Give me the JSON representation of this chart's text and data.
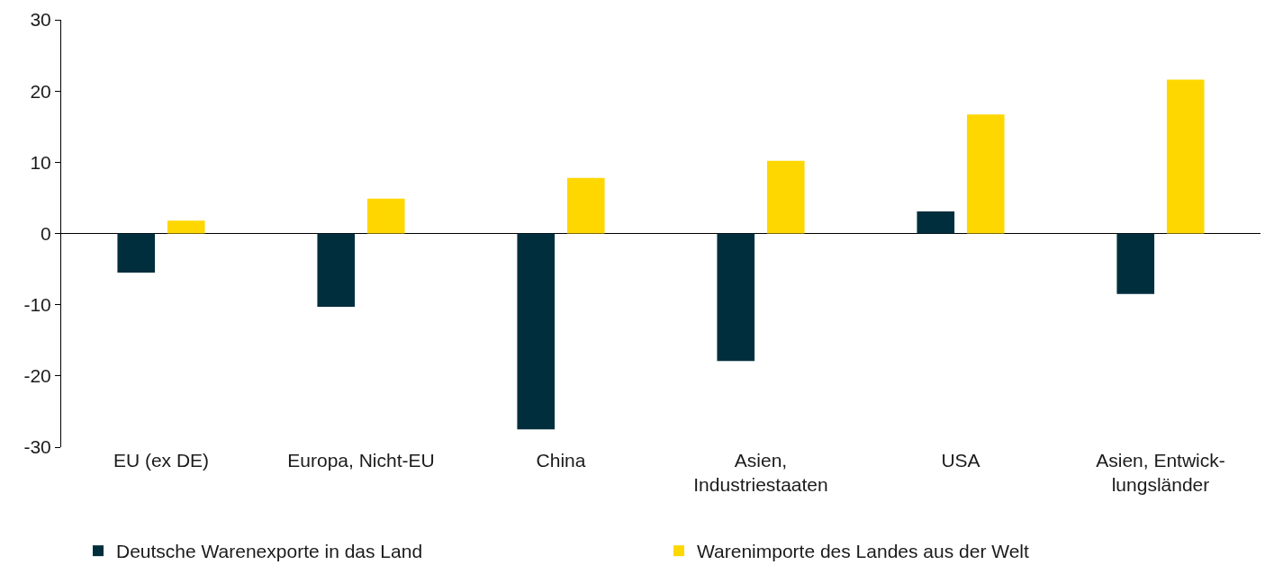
{
  "chart_data": {
    "type": "bar",
    "categories": [
      "EU (ex DE)",
      "Europa, Nicht-EU",
      "China",
      "Asien,\nIndustriestaaten",
      "USA",
      "Asien, Entwick-\nlungsländer"
    ],
    "series": [
      {
        "name": "Deutsche Warenexporte in das Land",
        "color": "#002e3c",
        "values": [
          -5.5,
          -10.3,
          -27.5,
          -17.9,
          3.1,
          -8.5
        ]
      },
      {
        "name": "Warenimporte des Landes aus der Welt",
        "color": "#ffd700",
        "values": [
          1.8,
          4.9,
          7.8,
          10.2,
          16.7,
          21.6
        ]
      }
    ],
    "ylim": [
      -30,
      30
    ],
    "yticks": [
      -30,
      -20,
      -10,
      0,
      10,
      20,
      30
    ],
    "legend": "bottom"
  }
}
